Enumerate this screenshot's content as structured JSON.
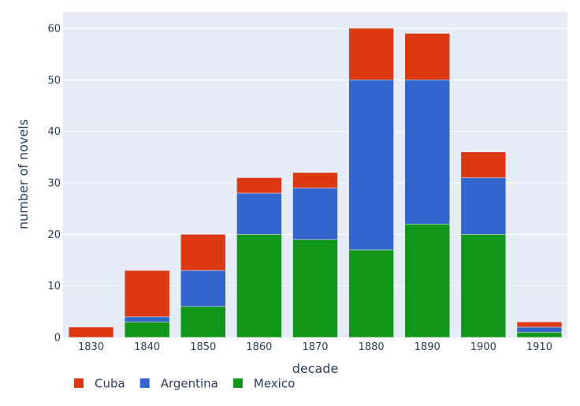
{
  "chart_data": {
    "type": "bar",
    "stacked": true,
    "categories": [
      "1830",
      "1840",
      "1850",
      "1860",
      "1870",
      "1880",
      "1890",
      "1900",
      "1910"
    ],
    "series": [
      {
        "name": "Mexico",
        "color": "#109618",
        "values": [
          0,
          3,
          6,
          20,
          19,
          17,
          22,
          20,
          1
        ]
      },
      {
        "name": "Argentina",
        "color": "#3366cc",
        "values": [
          0,
          1,
          7,
          8,
          10,
          33,
          28,
          11,
          1
        ]
      },
      {
        "name": "Cuba",
        "color": "#dc3912",
        "values": [
          2,
          9,
          7,
          3,
          3,
          10,
          9,
          5,
          1
        ]
      }
    ],
    "legend_order": [
      "Cuba",
      "Argentina",
      "Mexico"
    ],
    "xlabel": "decade",
    "ylabel": "number of novels",
    "ylim": [
      0,
      63.2
    ],
    "yticks": [
      0,
      10,
      20,
      30,
      40,
      50,
      60
    ],
    "grid": true,
    "legend_position": "bottom-left",
    "plot_background": "#e5ecf6"
  }
}
